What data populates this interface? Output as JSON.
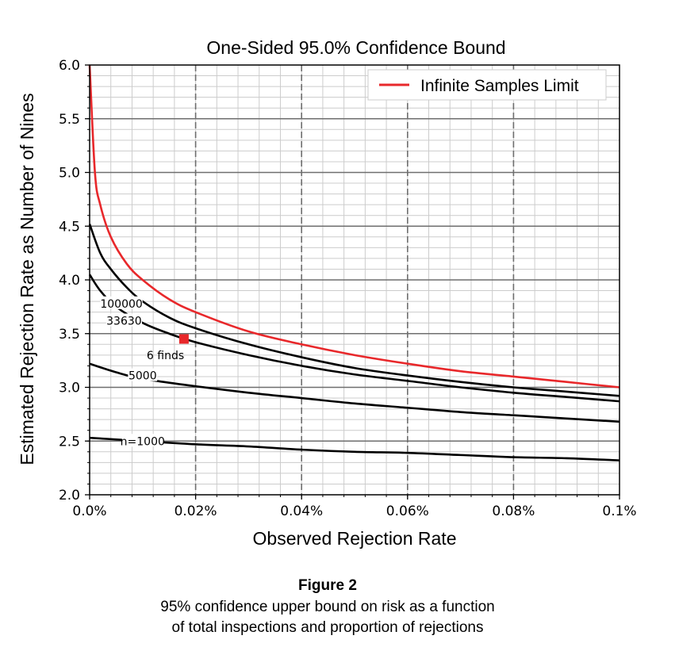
{
  "chart_data": {
    "type": "line",
    "title": "One-Sided 95.0% Confidence Bound",
    "xlabel": "Observed Rejection Rate",
    "ylabel": "Estimated Rejection Rate as Number of Nines",
    "xlim": [
      0,
      0.1
    ],
    "ylim": [
      2.0,
      6.0
    ],
    "x_ticks": [
      0,
      0.02,
      0.04,
      0.06,
      0.08,
      0.1
    ],
    "x_tick_labels": [
      "0.0%",
      "0.02%",
      "0.04%",
      "0.06%",
      "0.08%",
      "0.1%"
    ],
    "y_ticks": [
      2.0,
      2.5,
      3.0,
      3.5,
      4.0,
      4.5,
      5.0,
      5.5,
      6.0
    ],
    "y_tick_labels": [
      "2.0",
      "2.5",
      "3.0",
      "3.5",
      "4.0",
      "4.5",
      "5.0",
      "5.5",
      "6.0"
    ],
    "grid": true,
    "legend_position": "top-right",
    "series": [
      {
        "name": "Infinite Samples Limit",
        "color": "#e8282b",
        "in_legend": true,
        "x": [
          0.0,
          0.001,
          0.002,
          0.004,
          0.007,
          0.01,
          0.015,
          0.02,
          0.03,
          0.04,
          0.05,
          0.06,
          0.07,
          0.08,
          0.09,
          0.1
        ],
        "y": [
          6.0,
          5.0,
          4.7,
          4.4,
          4.15,
          4.0,
          3.82,
          3.7,
          3.52,
          3.4,
          3.3,
          3.22,
          3.15,
          3.1,
          3.05,
          3.0
        ]
      },
      {
        "name": "100000",
        "color": "#000000",
        "in_legend": false,
        "x": [
          0.0,
          0.002,
          0.004,
          0.007,
          0.01,
          0.015,
          0.02,
          0.03,
          0.04,
          0.05,
          0.06,
          0.07,
          0.08,
          0.09,
          0.1
        ],
        "y": [
          4.52,
          4.25,
          4.1,
          3.93,
          3.8,
          3.65,
          3.55,
          3.4,
          3.28,
          3.18,
          3.11,
          3.05,
          3.0,
          2.96,
          2.92
        ]
      },
      {
        "name": "33630",
        "color": "#000000",
        "in_legend": false,
        "x": [
          0.0,
          0.002,
          0.005,
          0.01,
          0.015,
          0.02,
          0.03,
          0.04,
          0.05,
          0.06,
          0.07,
          0.08,
          0.09,
          0.1
        ],
        "y": [
          4.05,
          3.9,
          3.75,
          3.6,
          3.5,
          3.42,
          3.3,
          3.2,
          3.12,
          3.06,
          3.0,
          2.95,
          2.91,
          2.87
        ]
      },
      {
        "name": "5000",
        "color": "#000000",
        "in_legend": false,
        "x": [
          0.0,
          0.005,
          0.01,
          0.02,
          0.03,
          0.04,
          0.05,
          0.06,
          0.07,
          0.08,
          0.09,
          0.1
        ],
        "y": [
          3.22,
          3.14,
          3.08,
          3.01,
          2.95,
          2.9,
          2.85,
          2.81,
          2.77,
          2.74,
          2.71,
          2.68
        ]
      },
      {
        "name": "n=1000",
        "color": "#000000",
        "in_legend": false,
        "x": [
          0.0,
          0.01,
          0.02,
          0.03,
          0.04,
          0.05,
          0.06,
          0.07,
          0.08,
          0.09,
          0.1
        ],
        "y": [
          2.53,
          2.5,
          2.47,
          2.45,
          2.42,
          2.4,
          2.39,
          2.37,
          2.35,
          2.34,
          2.32
        ]
      }
    ],
    "curve_labels": [
      {
        "text": "100000",
        "x": 0.006,
        "y": 3.78
      },
      {
        "text": "33630",
        "x": 0.0065,
        "y": 3.62
      },
      {
        "text": "5000",
        "x": 0.01,
        "y": 3.11
      },
      {
        "text": "n=1000",
        "x": 0.01,
        "y": 2.5
      }
    ],
    "marker": {
      "label": "6 finds",
      "x": 0.0178,
      "y": 3.45,
      "color": "#e8282b",
      "label_x": 0.0143,
      "label_y": 3.3
    }
  },
  "caption": {
    "title": "Figure 2",
    "line1": "95% confidence upper bound on risk as a function",
    "line2": "of total inspections and proportion of rejections"
  }
}
